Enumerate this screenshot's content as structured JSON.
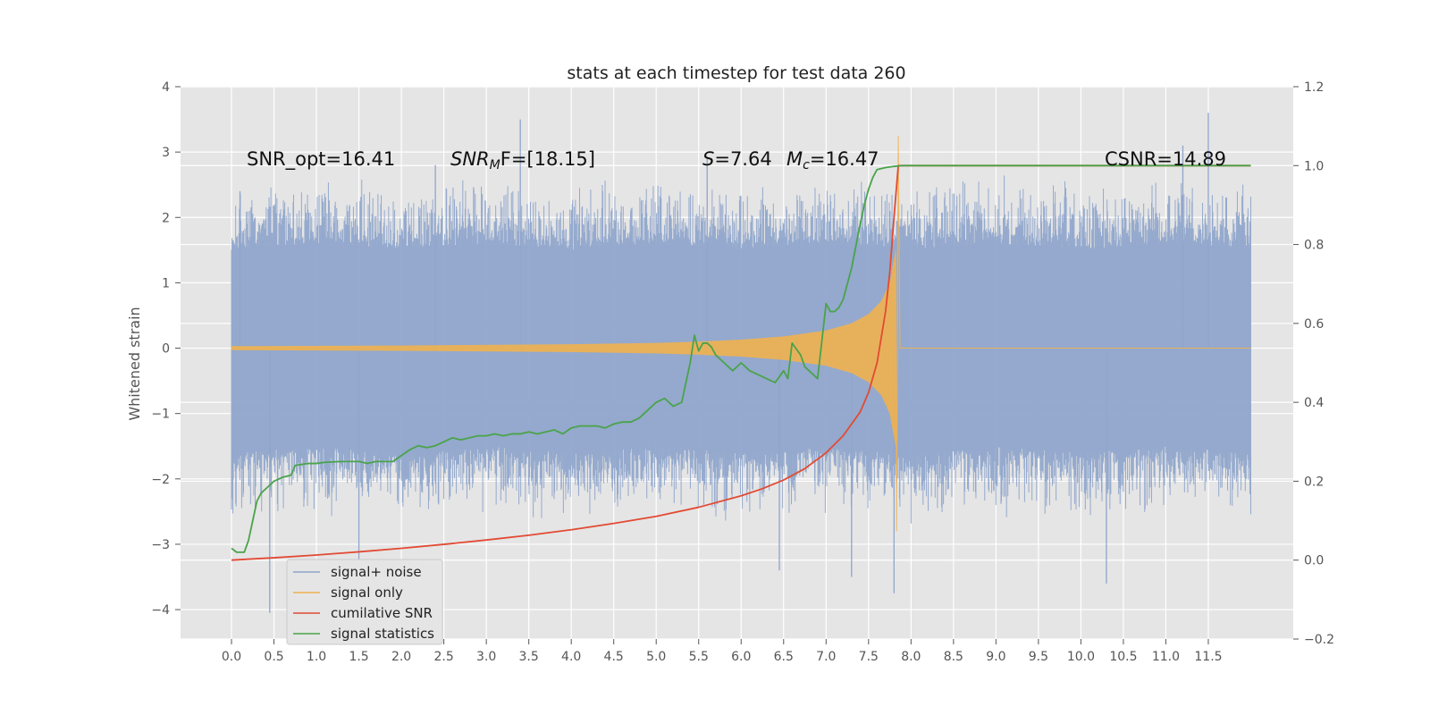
{
  "chart_data": {
    "type": "line",
    "title": "stats at each timestep for test data 260",
    "xlabel": "",
    "ylabel": "Whitened strain",
    "xlim": [
      -0.6,
      12.5
    ],
    "ylim": [
      -4.45,
      4.0
    ],
    "y2lim": [
      -0.2,
      1.2
    ],
    "grid": true,
    "x_ticks": [
      "0.0",
      "0.5",
      "1.0",
      "1.5",
      "2.0",
      "2.5",
      "3.0",
      "3.5",
      "4.0",
      "4.5",
      "5.0",
      "5.5",
      "6.0",
      "6.5",
      "7.0",
      "7.5",
      "8.0",
      "8.5",
      "9.0",
      "9.5",
      "10.0",
      "10.5",
      "11.0",
      "11.5"
    ],
    "x_tick_values": [
      0.0,
      0.5,
      1.0,
      1.5,
      2.0,
      2.5,
      3.0,
      3.5,
      4.0,
      4.5,
      5.0,
      5.5,
      6.0,
      6.5,
      7.0,
      7.5,
      8.0,
      8.5,
      9.0,
      9.5,
      10.0,
      10.5,
      11.0,
      11.5
    ],
    "y_ticks": [
      "4",
      "3",
      "2",
      "1",
      "0",
      "−1",
      "−2",
      "−3",
      "−4"
    ],
    "y_tick_values": [
      4,
      3,
      2,
      1,
      0,
      -1,
      -2,
      -3,
      -4
    ],
    "y2_ticks": [
      "1.2",
      "1.0",
      "0.8",
      "0.6",
      "0.4",
      "0.2",
      "0.0",
      "−0.2"
    ],
    "y2_tick_values": [
      1.2,
      1.0,
      0.8,
      0.6,
      0.4,
      0.2,
      0.0,
      -0.2
    ],
    "legend_position": "lower-left",
    "annotations": {
      "snr_opt": "SNR_opt=16.41",
      "snr_mf_base": "SNR",
      "snr_mf_sub": "M",
      "snr_mf_rest": "F=[18.15]",
      "s_italic": "S",
      "s_value": "=7.64",
      "mc_italic": "M",
      "mc_sub": "c",
      "mc_value": "=16.47",
      "csnr": "CSNR=14.89"
    },
    "series": [
      {
        "name": "signal+ noise",
        "color": "#8fa5cb",
        "axis": "left",
        "x_range": [
          0.0,
          12.0
        ],
        "envelope_upper": [
          1.5,
          1.6,
          1.5,
          1.6,
          1.5,
          1.6,
          1.5,
          1.6,
          1.5,
          1.6,
          1.5,
          1.6,
          1.5
        ],
        "envelope_lower": [
          -1.6,
          -1.5,
          -1.6,
          -1.5,
          -1.6,
          -1.5,
          -1.6,
          -1.5,
          -1.6,
          -1.5,
          -1.6,
          -1.5,
          -1.6
        ],
        "peak_x": [
          0.1,
          0.45,
          1.5,
          2.4,
          3.4,
          5.6,
          6.45,
          7.3,
          7.8,
          10.3,
          11.2,
          11.5
        ],
        "peak_y": [
          2.4,
          -4.05,
          -3.3,
          2.8,
          3.5,
          2.9,
          -3.4,
          -3.5,
          -3.75,
          -3.6,
          3.1,
          3.6
        ]
      },
      {
        "name": "signal only",
        "color": "#f0b14f",
        "axis": "left",
        "x": [
          0.0,
          1.0,
          2.0,
          3.0,
          4.0,
          5.0,
          5.5,
          6.0,
          6.5,
          7.0,
          7.3,
          7.5,
          7.65,
          7.75,
          7.82,
          7.85
        ],
        "amplitude": [
          0.03,
          0.035,
          0.04,
          0.05,
          0.06,
          0.08,
          0.1,
          0.13,
          0.18,
          0.27,
          0.38,
          0.52,
          0.72,
          1.0,
          1.5,
          3.25
        ],
        "min_at_end": -2.8,
        "after_merger": 0.0
      },
      {
        "name": "cumilative SNR",
        "color": "#e24a33",
        "axis": "right",
        "x": [
          0.0,
          0.5,
          1.0,
          1.5,
          2.0,
          2.5,
          3.0,
          3.5,
          4.0,
          4.5,
          5.0,
          5.5,
          6.0,
          6.25,
          6.5,
          6.75,
          7.0,
          7.2,
          7.4,
          7.5,
          7.6,
          7.7,
          7.75,
          7.8,
          7.85,
          8.0,
          9.0,
          10.0,
          11.0,
          12.0
        ],
        "y": [
          0.0,
          0.006,
          0.013,
          0.021,
          0.03,
          0.04,
          0.051,
          0.063,
          0.077,
          0.093,
          0.111,
          0.134,
          0.163,
          0.181,
          0.203,
          0.232,
          0.272,
          0.315,
          0.375,
          0.425,
          0.5,
          0.63,
          0.73,
          0.87,
          1.0,
          1.0,
          1.0,
          1.0,
          1.0,
          1.0
        ]
      },
      {
        "name": "signal statistics",
        "color": "#4aa34a",
        "axis": "right",
        "x": [
          0.0,
          0.06,
          0.15,
          0.2,
          0.3,
          0.35,
          0.4,
          0.5,
          0.6,
          0.7,
          0.75,
          0.9,
          1.0,
          1.1,
          1.3,
          1.5,
          1.6,
          1.7,
          1.9,
          2.0,
          2.1,
          2.2,
          2.3,
          2.4,
          2.5,
          2.6,
          2.7,
          2.8,
          2.9,
          3.0,
          3.1,
          3.2,
          3.3,
          3.4,
          3.5,
          3.6,
          3.7,
          3.8,
          3.9,
          4.0,
          4.1,
          4.2,
          4.3,
          4.4,
          4.5,
          4.6,
          4.7,
          4.8,
          4.9,
          5.0,
          5.1,
          5.2,
          5.3,
          5.35,
          5.4,
          5.45,
          5.5,
          5.55,
          5.6,
          5.65,
          5.7,
          5.8,
          5.9,
          6.0,
          6.1,
          6.2,
          6.3,
          6.4,
          6.5,
          6.55,
          6.6,
          6.7,
          6.75,
          6.8,
          6.9,
          7.0,
          7.05,
          7.1,
          7.15,
          7.2,
          7.3,
          7.4,
          7.45,
          7.5,
          7.55,
          7.6,
          7.7,
          7.8,
          7.9,
          8.0,
          9.0,
          10.0,
          11.0,
          12.0
        ],
        "y": [
          0.03,
          0.02,
          0.02,
          0.05,
          0.15,
          0.17,
          0.18,
          0.2,
          0.21,
          0.215,
          0.24,
          0.245,
          0.245,
          0.248,
          0.25,
          0.25,
          0.245,
          0.25,
          0.25,
          0.265,
          0.28,
          0.29,
          0.285,
          0.29,
          0.3,
          0.31,
          0.305,
          0.31,
          0.315,
          0.315,
          0.32,
          0.315,
          0.32,
          0.32,
          0.325,
          0.32,
          0.325,
          0.33,
          0.32,
          0.335,
          0.34,
          0.34,
          0.34,
          0.335,
          0.345,
          0.35,
          0.35,
          0.36,
          0.38,
          0.4,
          0.41,
          0.39,
          0.4,
          0.45,
          0.5,
          0.57,
          0.53,
          0.55,
          0.55,
          0.54,
          0.52,
          0.5,
          0.48,
          0.5,
          0.48,
          0.47,
          0.46,
          0.45,
          0.48,
          0.46,
          0.55,
          0.52,
          0.49,
          0.48,
          0.46,
          0.65,
          0.63,
          0.63,
          0.64,
          0.66,
          0.74,
          0.85,
          0.9,
          0.94,
          0.97,
          0.99,
          0.995,
          0.998,
          1.0,
          1.0,
          1.0,
          1.0,
          1.0,
          1.0
        ]
      }
    ]
  }
}
